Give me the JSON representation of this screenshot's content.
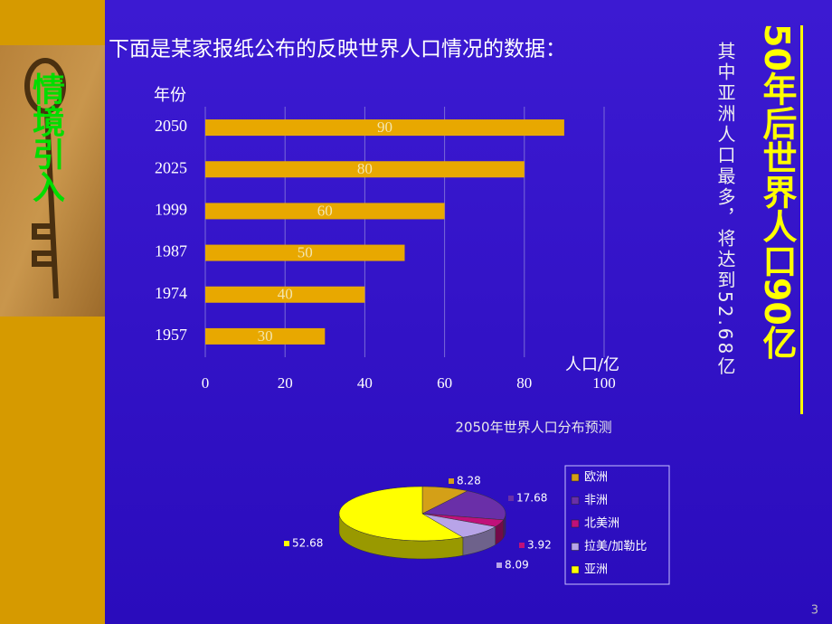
{
  "slide": {
    "side_label": "情境引入",
    "heading": "下面是某家报纸公布的反映世界人口情况的数据：",
    "note": "其中亚洲人口最多，将达到52.68亿",
    "headline": "50年后世界人口90亿",
    "page_number": "3"
  },
  "chart_data": [
    {
      "type": "bar",
      "orientation": "horizontal",
      "categories": [
        "2050",
        "2025",
        "1999",
        "1987",
        "1974",
        "1957"
      ],
      "values": [
        90,
        80,
        60,
        50,
        40,
        30
      ],
      "color": "#e8a800",
      "xlim": [
        0,
        100
      ],
      "xticks": [
        0,
        20,
        40,
        60,
        80,
        100
      ],
      "xlabel": "人口/亿",
      "ylabel": "年份",
      "grid": true
    },
    {
      "type": "pie",
      "title": "2050年世界人口分布预测",
      "categories": [
        "欧洲",
        "非洲",
        "北美洲",
        "拉美/加勒比",
        "亚洲"
      ],
      "values": [
        8.28,
        17.68,
        3.92,
        8.09,
        52.68
      ],
      "colors": [
        "#d4a017",
        "#6a2fa8",
        "#c0107a",
        "#b8a4e8",
        "#ffff00"
      ],
      "legend": "right"
    }
  ]
}
